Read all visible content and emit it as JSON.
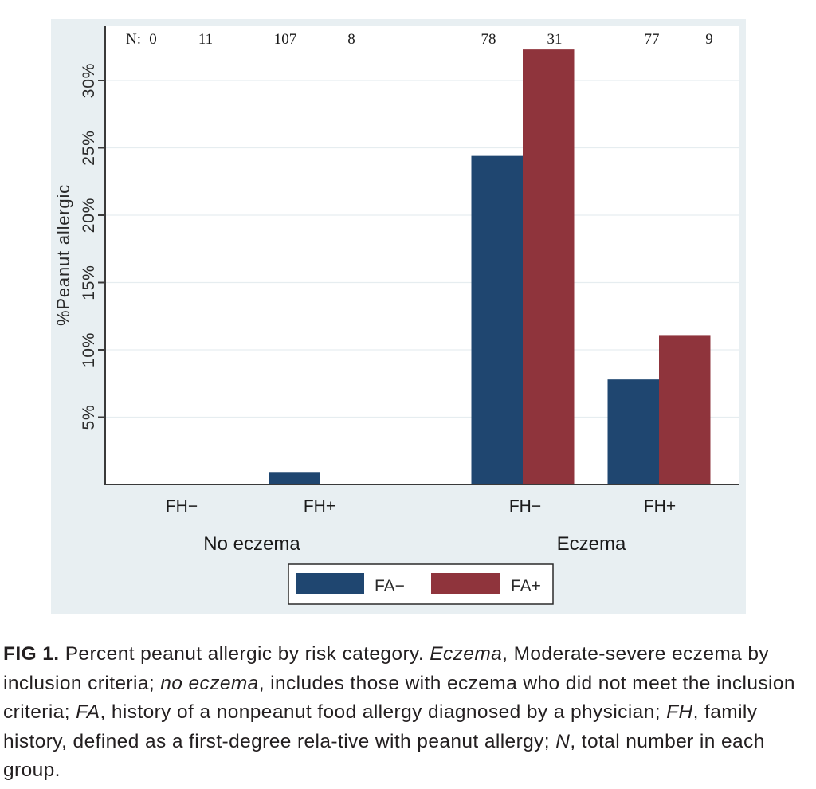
{
  "chart_data": {
    "type": "bar",
    "title": "",
    "xlabel": "",
    "ylabel": "%Peanut allergic",
    "ylim": [
      0,
      34
    ],
    "yticks": [
      5,
      10,
      15,
      20,
      25,
      30
    ],
    "ytick_labels": [
      "5%",
      "10%",
      "15%",
      "20%",
      "25%",
      "30%"
    ],
    "grid": true,
    "n_prefix": "N:",
    "groups": [
      {
        "label": "No eczema",
        "categories": [
          {
            "label": "FH−",
            "n": [
              0,
              11
            ],
            "values": [
              0,
              0
            ]
          },
          {
            "label": "FH+",
            "n": [
              107,
              8
            ],
            "values": [
              0.93,
              0
            ]
          }
        ]
      },
      {
        "label": "Eczema",
        "categories": [
          {
            "label": "FH−",
            "n": [
              78,
              31
            ],
            "values": [
              24.4,
              32.3
            ]
          },
          {
            "label": "FH+",
            "n": [
              77,
              9
            ],
            "values": [
              7.8,
              11.1
            ]
          }
        ]
      }
    ],
    "series": [
      {
        "name": "FA−",
        "color": "#1f4670"
      },
      {
        "name": "FA+",
        "color": "#8f343c"
      }
    ],
    "legend_position": "bottom"
  },
  "caption": {
    "label": "FIG 1.",
    "parts": [
      {
        "text": " Percent peanut allergic by risk category. ",
        "italic": false
      },
      {
        "text": "Eczema",
        "italic": true
      },
      {
        "text": ", Moderate-severe eczema by inclusion criteria; ",
        "italic": false
      },
      {
        "text": "no eczema",
        "italic": true
      },
      {
        "text": ", includes those with eczema who did not meet the inclusion criteria; ",
        "italic": false
      },
      {
        "text": "FA",
        "italic": true
      },
      {
        "text": ", history of a nonpeanut food allergy diagnosed by a physician; ",
        "italic": false
      },
      {
        "text": "FH",
        "italic": true
      },
      {
        "text": ", family history, defined as a first-degree rela-tive with peanut allergy; ",
        "italic": false
      },
      {
        "text": "N",
        "italic": true
      },
      {
        "text": ", total number in each group.",
        "italic": false
      }
    ]
  },
  "colors": {
    "outer_bg": "#e8eff2",
    "plot_bg": "#ffffff",
    "grid": "#e6edf0",
    "axis": "#3a3a3a",
    "text": "#1a1a1a"
  }
}
